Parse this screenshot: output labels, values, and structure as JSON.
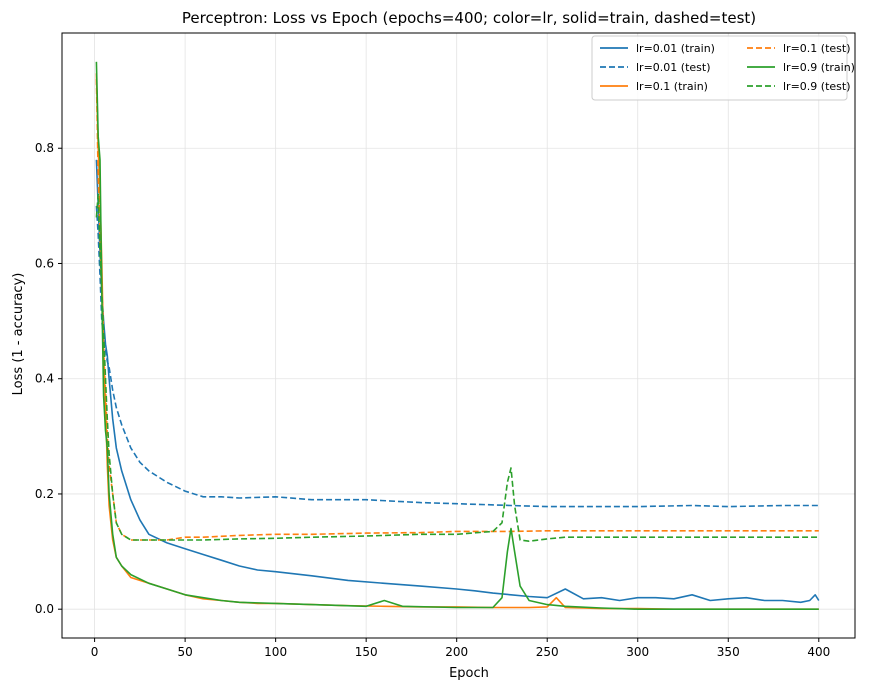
{
  "chart_data": {
    "type": "line",
    "title": "Perceptron: Loss vs Epoch (epochs=400; color=lr, solid=train, dashed=test)",
    "xlabel": "Epoch",
    "ylabel": "Loss (1 - accuracy)",
    "xlim": [
      -18,
      420
    ],
    "ylim": [
      -0.05,
      1.0
    ],
    "xticks": [
      0,
      50,
      100,
      150,
      200,
      250,
      300,
      350,
      400
    ],
    "yticks": [
      0.0,
      0.2,
      0.4,
      0.6,
      0.8
    ],
    "grid": true,
    "legend_position": "top-right",
    "legend_columns": 2,
    "series": [
      {
        "name": "lr=0.01 (train)",
        "color": "#1f77b4",
        "dashed": false,
        "x": [
          1,
          2,
          3,
          4,
          5,
          6,
          7,
          8,
          10,
          12,
          15,
          20,
          25,
          30,
          40,
          50,
          60,
          70,
          80,
          90,
          100,
          120,
          140,
          160,
          180,
          200,
          210,
          220,
          230,
          240,
          250,
          260,
          270,
          280,
          290,
          300,
          310,
          320,
          330,
          340,
          350,
          360,
          370,
          380,
          390,
          395,
          398,
          400
        ],
        "y": [
          0.78,
          0.7,
          0.62,
          0.55,
          0.5,
          0.46,
          0.44,
          0.4,
          0.33,
          0.28,
          0.24,
          0.19,
          0.155,
          0.13,
          0.115,
          0.105,
          0.095,
          0.085,
          0.075,
          0.068,
          0.065,
          0.058,
          0.05,
          0.045,
          0.04,
          0.035,
          0.032,
          0.028,
          0.025,
          0.022,
          0.02,
          0.035,
          0.018,
          0.02,
          0.015,
          0.02,
          0.02,
          0.018,
          0.025,
          0.015,
          0.018,
          0.02,
          0.015,
          0.015,
          0.012,
          0.015,
          0.025,
          0.015
        ]
      },
      {
        "name": "lr=0.01 (test)",
        "color": "#1f77b4",
        "dashed": true,
        "x": [
          1,
          2,
          3,
          4,
          5,
          6,
          7,
          8,
          10,
          12,
          15,
          20,
          25,
          30,
          40,
          50,
          60,
          70,
          80,
          100,
          120,
          150,
          180,
          200,
          230,
          250,
          280,
          300,
          330,
          350,
          380,
          400
        ],
        "y": [
          0.7,
          0.65,
          0.58,
          0.5,
          0.47,
          0.45,
          0.43,
          0.42,
          0.38,
          0.35,
          0.32,
          0.28,
          0.255,
          0.24,
          0.22,
          0.205,
          0.195,
          0.195,
          0.193,
          0.195,
          0.19,
          0.19,
          0.185,
          0.183,
          0.18,
          0.178,
          0.178,
          0.178,
          0.18,
          0.178,
          0.18,
          0.18
        ]
      },
      {
        "name": "lr=0.1 (train)",
        "color": "#ff7f0e",
        "dashed": false,
        "x": [
          1,
          2,
          3,
          4,
          5,
          6,
          7,
          8,
          10,
          12,
          15,
          20,
          30,
          40,
          50,
          60,
          70,
          80,
          90,
          100,
          120,
          140,
          160,
          180,
          200,
          220,
          240,
          250,
          255,
          260,
          270,
          280,
          300,
          320,
          350,
          380,
          400
        ],
        "y": [
          0.93,
          0.8,
          0.72,
          0.6,
          0.45,
          0.35,
          0.25,
          0.18,
          0.12,
          0.09,
          0.075,
          0.055,
          0.045,
          0.035,
          0.025,
          0.018,
          0.015,
          0.012,
          0.01,
          0.01,
          0.008,
          0.006,
          0.005,
          0.004,
          0.004,
          0.003,
          0.003,
          0.004,
          0.02,
          0.003,
          0.002,
          0.001,
          0.001,
          0.0,
          0.0,
          0.0,
          0.0
        ]
      },
      {
        "name": "lr=0.1 (test)",
        "color": "#ff7f0e",
        "dashed": true,
        "x": [
          1,
          2,
          3,
          4,
          5,
          6,
          7,
          8,
          10,
          12,
          15,
          20,
          30,
          40,
          50,
          60,
          80,
          100,
          120,
          150,
          180,
          200,
          230,
          250,
          260,
          280,
          300,
          320,
          350,
          380,
          400
        ],
        "y": [
          0.92,
          0.75,
          0.65,
          0.55,
          0.45,
          0.38,
          0.3,
          0.25,
          0.2,
          0.15,
          0.13,
          0.12,
          0.12,
          0.12,
          0.125,
          0.125,
          0.128,
          0.13,
          0.13,
          0.132,
          0.133,
          0.135,
          0.135,
          0.136,
          0.136,
          0.136,
          0.136,
          0.136,
          0.136,
          0.136,
          0.136
        ]
      },
      {
        "name": "lr=0.9 (train)",
        "color": "#2ca02c",
        "dashed": false,
        "x": [
          1,
          2,
          3,
          4,
          5,
          6,
          7,
          8,
          10,
          12,
          15,
          20,
          30,
          40,
          50,
          60,
          70,
          80,
          100,
          120,
          150,
          160,
          170,
          200,
          220,
          225,
          228,
          230,
          232,
          235,
          240,
          250,
          260,
          280,
          300,
          350,
          400
        ],
        "y": [
          0.95,
          0.82,
          0.78,
          0.55,
          0.37,
          0.31,
          0.28,
          0.2,
          0.13,
          0.09,
          0.075,
          0.06,
          0.045,
          0.035,
          0.025,
          0.02,
          0.015,
          0.012,
          0.01,
          0.008,
          0.005,
          0.015,
          0.005,
          0.003,
          0.003,
          0.02,
          0.1,
          0.14,
          0.1,
          0.04,
          0.015,
          0.008,
          0.005,
          0.002,
          0.0,
          0.0,
          0.0
        ]
      },
      {
        "name": "lr=0.9 (test)",
        "color": "#2ca02c",
        "dashed": true,
        "x": [
          1,
          2,
          3,
          4,
          5,
          6,
          7,
          8,
          10,
          12,
          15,
          20,
          30,
          40,
          50,
          60,
          80,
          100,
          120,
          150,
          180,
          200,
          220,
          225,
          228,
          230,
          232,
          235,
          240,
          250,
          260,
          280,
          300,
          330,
          360,
          400
        ],
        "y": [
          0.68,
          0.72,
          0.62,
          0.55,
          0.48,
          0.4,
          0.33,
          0.27,
          0.2,
          0.15,
          0.13,
          0.12,
          0.12,
          0.12,
          0.12,
          0.12,
          0.122,
          0.123,
          0.125,
          0.127,
          0.13,
          0.13,
          0.135,
          0.15,
          0.22,
          0.245,
          0.18,
          0.12,
          0.118,
          0.122,
          0.125,
          0.125,
          0.125,
          0.125,
          0.125,
          0.125
        ]
      }
    ]
  }
}
